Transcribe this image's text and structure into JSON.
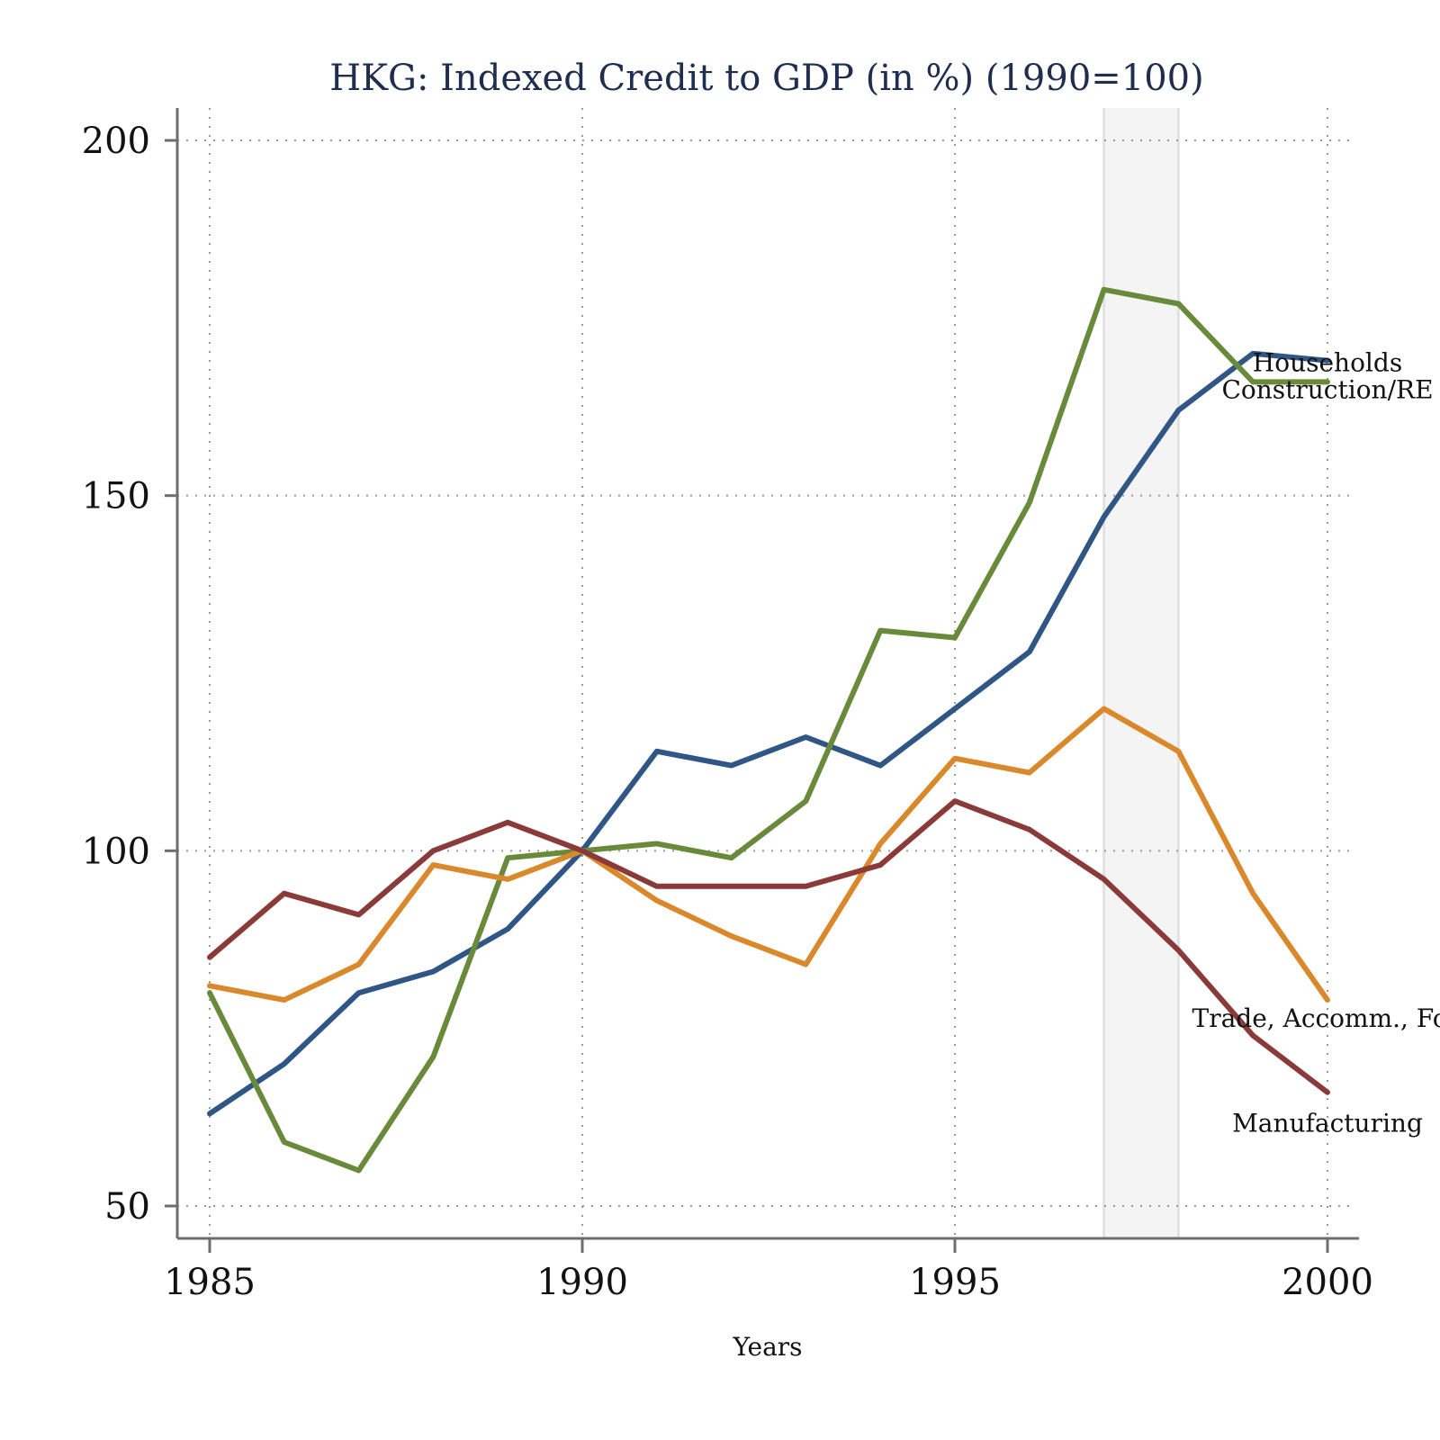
{
  "chart_data": {
    "type": "line",
    "title": "HKG: Indexed Credit to GDP (in %) (1990=100)",
    "xlabel": "Years",
    "ylabel": "",
    "xlim": [
      1985,
      2000
    ],
    "ylim": [
      50,
      200
    ],
    "xticks": [
      1985,
      1990,
      1995,
      2000
    ],
    "yticks": [
      50,
      100,
      150,
      200
    ],
    "grid": true,
    "shaded_range": [
      1997,
      1998
    ],
    "x": [
      1985,
      1986,
      1987,
      1988,
      1989,
      1990,
      1991,
      1992,
      1993,
      1994,
      1995,
      1996,
      1997,
      1998,
      1999,
      2000
    ],
    "series": [
      {
        "name": "Households",
        "color": "#2f5685",
        "values": [
          63,
          70,
          80,
          83,
          89,
          100,
          114,
          112,
          116,
          112,
          120,
          128,
          147,
          162,
          170,
          169
        ]
      },
      {
        "name": "Construction/RE",
        "color": "#6a8a3b",
        "values": [
          80,
          59,
          55,
          71,
          99,
          100,
          101,
          99,
          107,
          131,
          130,
          149,
          179,
          177,
          166,
          166
        ]
      },
      {
        "name": "Trade, Accomm., Foo",
        "color": "#d9892b",
        "values": [
          81,
          79,
          84,
          98,
          96,
          100,
          93,
          88,
          84,
          101,
          113,
          111,
          120,
          114,
          94,
          79
        ]
      },
      {
        "name": "Manufacturing",
        "color": "#8b3a3a",
        "values": [
          85,
          94,
          91,
          100,
          104,
          100,
          95,
          95,
          95,
          98,
          107,
          103,
          96,
          86,
          74,
          66
        ]
      }
    ]
  }
}
